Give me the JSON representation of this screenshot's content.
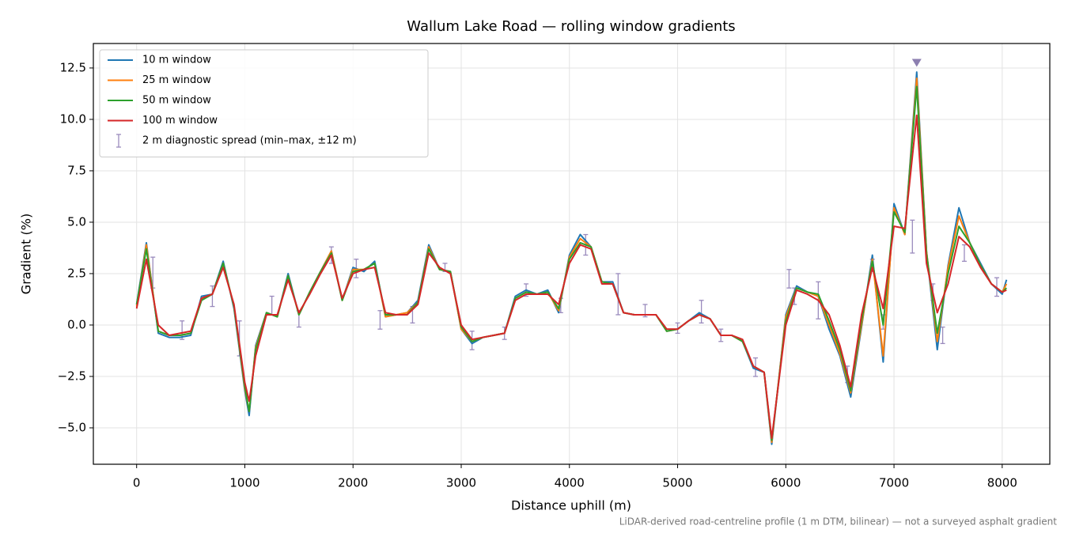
{
  "chart_data": {
    "type": "line",
    "title": "Wallum Lake Road — rolling window gradients",
    "xlabel": "Distance uphill (m)",
    "ylabel": "Gradient (%)",
    "footnote": "LiDAR-derived road-centreline profile (1 m DTM, bilinear) — not a surveyed asphalt gradient",
    "xlim": [
      -400,
      8440
    ],
    "ylim": [
      -6.77,
      13.69
    ],
    "xticks": [
      0,
      1000,
      2000,
      3000,
      4000,
      5000,
      6000,
      7000,
      8000
    ],
    "yticks": [
      {
        "value": -5,
        "label": "−5.0"
      },
      {
        "value": -2.5,
        "label": "−2.5"
      },
      {
        "value": 0,
        "label": "0.0"
      },
      {
        "value": 2.5,
        "label": "2.5"
      },
      {
        "value": 5,
        "label": "5.0"
      },
      {
        "value": 7.5,
        "label": "7.5"
      },
      {
        "value": 10,
        "label": "10.0"
      },
      {
        "value": 12.5,
        "label": "12.5"
      }
    ],
    "grid": true,
    "legend": "upper left",
    "x": [
      0,
      90,
      200,
      300,
      400,
      500,
      600,
      700,
      800,
      900,
      1000,
      1040,
      1100,
      1200,
      1300,
      1400,
      1500,
      1600,
      1700,
      1800,
      1900,
      2000,
      2100,
      2200,
      2300,
      2400,
      2500,
      2600,
      2700,
      2800,
      2900,
      3000,
      3100,
      3200,
      3300,
      3400,
      3500,
      3600,
      3700,
      3800,
      3900,
      4000,
      4100,
      4200,
      4300,
      4400,
      4500,
      4600,
      4700,
      4800,
      4900,
      5000,
      5100,
      5200,
      5300,
      5400,
      5500,
      5600,
      5700,
      5800,
      5870,
      6000,
      6100,
      6200,
      6300,
      6400,
      6500,
      6600,
      6700,
      6800,
      6900,
      7000,
      7100,
      7210,
      7300,
      7400,
      7500,
      7600,
      7700,
      7800,
      7900,
      8000,
      8040
    ],
    "series": [
      {
        "name": "10 m window",
        "color": "#1f77b4",
        "values": [
          1.0,
          4.0,
          -0.4,
          -0.6,
          -0.6,
          -0.5,
          1.4,
          1.5,
          3.1,
          0.8,
          -3.2,
          -4.4,
          -1.0,
          0.6,
          0.4,
          2.5,
          0.5,
          1.6,
          2.6,
          3.6,
          1.2,
          2.8,
          2.6,
          3.1,
          0.4,
          0.5,
          0.6,
          1.2,
          3.9,
          2.7,
          2.6,
          -0.2,
          -0.9,
          -0.6,
          -0.5,
          -0.4,
          1.4,
          1.7,
          1.5,
          1.7,
          0.6,
          3.4,
          4.4,
          3.8,
          2.1,
          2.1,
          0.6,
          0.5,
          0.5,
          0.5,
          -0.3,
          -0.2,
          0.2,
          0.6,
          0.3,
          -0.5,
          -0.5,
          -0.8,
          -2.1,
          -2.3,
          -5.8,
          0.5,
          1.9,
          1.6,
          1.4,
          -0.2,
          -1.5,
          -3.5,
          -0.1,
          3.4,
          -1.8,
          5.9,
          4.4,
          12.3,
          3.6,
          -1.2,
          2.9,
          5.7,
          4.0,
          3.0,
          2.0,
          1.5,
          2.2
        ]
      },
      {
        "name": "25 m window",
        "color": "#ff7f0e",
        "values": [
          0.9,
          3.9,
          -0.3,
          -0.5,
          -0.5,
          -0.4,
          1.3,
          1.5,
          3.0,
          0.9,
          -3.1,
          -4.2,
          -1.1,
          0.6,
          0.4,
          2.4,
          0.5,
          1.6,
          2.6,
          3.6,
          1.2,
          2.7,
          2.7,
          3.0,
          0.4,
          0.5,
          0.6,
          1.1,
          3.8,
          2.7,
          2.6,
          -0.2,
          -0.8,
          -0.6,
          -0.5,
          -0.4,
          1.3,
          1.6,
          1.5,
          1.6,
          0.7,
          3.3,
          4.2,
          3.8,
          2.1,
          2.0,
          0.6,
          0.5,
          0.5,
          0.5,
          -0.3,
          -0.2,
          0.2,
          0.5,
          0.3,
          -0.5,
          -0.5,
          -0.8,
          -2.0,
          -2.3,
          -5.7,
          0.4,
          1.8,
          1.6,
          1.4,
          0.0,
          -1.4,
          -3.3,
          0.0,
          3.2,
          -1.5,
          5.7,
          4.4,
          12.0,
          3.6,
          -0.8,
          2.8,
          5.3,
          4.0,
          2.9,
          2.0,
          1.6,
          2.0
        ]
      },
      {
        "name": "50 m window",
        "color": "#2ca02c",
        "values": [
          1.0,
          3.7,
          -0.3,
          -0.5,
          -0.5,
          -0.4,
          1.2,
          1.5,
          3.0,
          0.9,
          -3.0,
          -4.2,
          -1.2,
          0.6,
          0.4,
          2.4,
          0.5,
          1.6,
          2.6,
          3.5,
          1.2,
          2.6,
          2.7,
          3.0,
          0.5,
          0.5,
          0.5,
          1.1,
          3.7,
          2.7,
          2.6,
          -0.1,
          -0.8,
          -0.6,
          -0.5,
          -0.4,
          1.3,
          1.6,
          1.5,
          1.6,
          0.8,
          3.2,
          4.0,
          3.8,
          2.1,
          2.0,
          0.6,
          0.5,
          0.5,
          0.5,
          -0.3,
          -0.2,
          0.2,
          0.5,
          0.3,
          -0.5,
          -0.5,
          -0.8,
          -2.0,
          -2.3,
          -5.6,
          0.2,
          1.8,
          1.6,
          1.5,
          0.2,
          -1.2,
          -3.2,
          0.2,
          3.1,
          0.0,
          5.5,
          4.5,
          11.6,
          3.5,
          -0.4,
          2.5,
          4.8,
          4.0,
          2.9,
          2.0,
          1.6,
          1.8
        ]
      },
      {
        "name": "100 m window",
        "color": "#d62728",
        "values": [
          0.8,
          3.2,
          0.0,
          -0.5,
          -0.4,
          -0.3,
          1.3,
          1.5,
          2.8,
          1.0,
          -2.8,
          -3.7,
          -1.5,
          0.5,
          0.5,
          2.2,
          0.6,
          1.5,
          2.5,
          3.4,
          1.3,
          2.5,
          2.7,
          2.8,
          0.6,
          0.5,
          0.5,
          1.0,
          3.5,
          2.8,
          2.5,
          0.0,
          -0.7,
          -0.6,
          -0.5,
          -0.4,
          1.2,
          1.5,
          1.5,
          1.5,
          1.0,
          3.0,
          3.9,
          3.7,
          2.0,
          2.0,
          0.6,
          0.5,
          0.5,
          0.5,
          -0.2,
          -0.2,
          0.2,
          0.5,
          0.3,
          -0.5,
          -0.5,
          -0.7,
          -2.0,
          -2.3,
          -5.5,
          0.0,
          1.7,
          1.5,
          1.2,
          0.5,
          -1.0,
          -3.0,
          0.5,
          2.8,
          0.8,
          4.8,
          4.7,
          10.2,
          3.0,
          0.6,
          2.0,
          4.3,
          3.8,
          2.8,
          2.0,
          1.6,
          1.7
        ]
      }
    ],
    "errorbars": {
      "name": "2 m diagnostic spread (min–max, ±12 m)",
      "color": "#9a8bbd",
      "x": [
        150,
        420,
        700,
        950,
        1250,
        1500,
        1800,
        2030,
        2250,
        2550,
        2850,
        3100,
        3400,
        3600,
        3920,
        4150,
        4450,
        4700,
        5000,
        5220,
        5400,
        5720,
        6030,
        6080,
        6300,
        6570,
        6800,
        6900,
        7170,
        7360,
        7450,
        7650,
        7950
      ],
      "low": [
        1.8,
        -0.7,
        0.9,
        -1.5,
        0.5,
        -0.1,
        3.0,
        2.3,
        -0.2,
        0.1,
        2.6,
        -1.2,
        -0.7,
        1.4,
        0.6,
        3.4,
        0.5,
        0.4,
        -0.4,
        0.1,
        -0.8,
        -2.5,
        1.8,
        1.0,
        0.3,
        -2.8,
        2.6,
        -0.2,
        3.5,
        1.2,
        -0.9,
        3.1,
        1.4
      ],
      "high": [
        3.3,
        0.2,
        1.9,
        0.2,
        1.4,
        0.7,
        3.8,
        3.2,
        0.7,
        0.9,
        3.0,
        -0.3,
        -0.1,
        2.0,
        1.3,
        4.4,
        2.5,
        1.0,
        0.1,
        1.2,
        -0.2,
        -1.6,
        2.7,
        1.8,
        2.1,
        -2.0,
        3.2,
        0.5,
        5.1,
        2.0,
        -0.1,
        3.9,
        2.3
      ]
    },
    "peak_marker": {
      "x": 7210,
      "y": 12.75,
      "color": "#8c7fb0"
    }
  }
}
